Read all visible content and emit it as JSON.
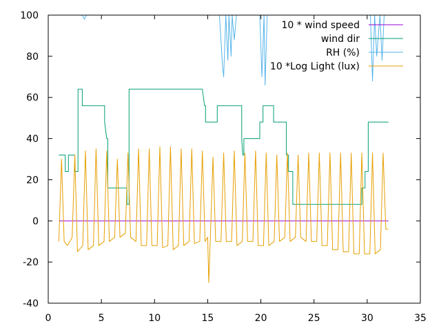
{
  "chart_data": {
    "type": "line",
    "xlim": [
      0,
      35
    ],
    "ylim": [
      -40,
      100
    ],
    "xticks": [
      0,
      5,
      10,
      15,
      20,
      25,
      30,
      35
    ],
    "yticks": [
      -40,
      -20,
      0,
      20,
      40,
      60,
      80,
      100
    ],
    "xtick_labels": [
      "0",
      "5",
      "10",
      "15",
      "20",
      "25",
      "30",
      "35"
    ],
    "ytick_labels": [
      "-40",
      "-20",
      "0",
      "20",
      "40",
      "60",
      "80",
      "100"
    ],
    "grid": false,
    "legend_position": "top-right",
    "series": [
      {
        "name": "10 * wind speed",
        "color": "#9400d3",
        "x": [
          1.0,
          32.0
        ],
        "y": [
          0,
          0
        ]
      },
      {
        "name": "wind dir",
        "color": "#009e73",
        "x": [
          1.0,
          1.6,
          1.6,
          1.9,
          1.9,
          2.5,
          2.5,
          2.8,
          2.8,
          3.2,
          3.2,
          5.3,
          5.3,
          5.5,
          5.6,
          5.6,
          7.4,
          7.4,
          7.6,
          7.6,
          14.5,
          14.7,
          14.8,
          14.8,
          15.9,
          15.9,
          18.2,
          18.2,
          18.3,
          18.4,
          18.4,
          19.9,
          19.9,
          20.2,
          20.2,
          21.2,
          21.2,
          22.4,
          22.4,
          22.6,
          22.6,
          23.0,
          23.0,
          29.5,
          29.5,
          29.8,
          29.8,
          30.1,
          30.1,
          32.0
        ],
        "y": [
          32,
          32,
          24,
          24,
          32,
          32,
          24,
          24,
          64,
          64,
          56,
          56,
          48,
          40,
          40,
          16,
          16,
          8,
          8,
          64,
          64,
          56,
          56,
          48,
          48,
          56,
          56,
          40,
          32,
          32,
          40,
          40,
          48,
          48,
          56,
          56,
          48,
          48,
          32,
          32,
          24,
          24,
          8,
          8,
          16,
          16,
          24,
          24,
          48,
          48
        ]
      },
      {
        "name": "RH (%)",
        "color": "#56b4e9",
        "x": [
          3.2,
          3.4,
          3.6,
          16.1,
          16.4,
          16.5,
          16.7,
          16.9,
          17.0,
          17.2,
          17.3,
          17.5,
          17.7,
          19.9,
          20.1,
          20.3,
          20.4,
          20.6,
          20.8,
          30.3,
          30.5,
          30.7,
          30.9,
          31.2,
          31.4,
          31.6,
          31.8,
          32.0
        ],
        "y": [
          100,
          98,
          100,
          100,
          75,
          70,
          100,
          78,
          100,
          80,
          100,
          88,
          100,
          100,
          70,
          100,
          66,
          100,
          100,
          100,
          68,
          100,
          80,
          100,
          78,
          100,
          100,
          100
        ]
      },
      {
        "name": "10 *Log Light (lux)",
        "color": "#e69f00",
        "x": [
          1.0,
          1.25,
          1.5,
          1.8,
          2.25,
          2.5,
          2.75,
          3.25,
          3.5,
          3.75,
          4.25,
          4.5,
          4.75,
          5.25,
          5.5,
          5.75,
          6.25,
          6.5,
          6.75,
          7.25,
          7.5,
          7.75,
          8.25,
          8.5,
          8.75,
          9.25,
          9.5,
          9.75,
          10.25,
          10.5,
          10.75,
          11.25,
          11.5,
          11.75,
          12.25,
          12.5,
          12.75,
          13.25,
          13.5,
          13.75,
          14.25,
          14.5,
          14.75,
          15.0,
          15.1,
          15.25,
          15.5,
          15.75,
          16.25,
          16.5,
          16.75,
          17.25,
          17.5,
          17.75,
          18.25,
          18.5,
          18.75,
          19.25,
          19.5,
          19.75,
          20.25,
          20.5,
          20.75,
          21.25,
          21.5,
          21.75,
          22.25,
          22.5,
          22.75,
          23.25,
          23.5,
          23.75,
          24.25,
          24.5,
          24.75,
          25.25,
          25.5,
          25.75,
          26.25,
          26.5,
          26.75,
          27.25,
          27.5,
          27.75,
          28.25,
          28.5,
          28.75,
          29.25,
          29.5,
          29.75,
          30.25,
          30.5,
          30.75,
          31.25,
          31.5,
          31.75,
          32.0
        ],
        "y": [
          -10,
          30,
          -10,
          -12,
          -8,
          32,
          -15,
          -12,
          34,
          -14,
          -12,
          35,
          -12,
          -10,
          34,
          -10,
          -8,
          30,
          -8,
          -6,
          33,
          -8,
          -10,
          35,
          -12,
          -12,
          35,
          -12,
          -12,
          36,
          -13,
          -12,
          36,
          -14,
          -12,
          35,
          -12,
          -10,
          35,
          -11,
          -10,
          34,
          -10,
          -8,
          -30,
          -8,
          31,
          -10,
          -10,
          33,
          -10,
          -10,
          34,
          -12,
          -10,
          33,
          -10,
          -10,
          34,
          -12,
          -12,
          33,
          -12,
          -10,
          32,
          -10,
          -8,
          33,
          -10,
          -8,
          32,
          -8,
          -10,
          33,
          -10,
          -10,
          33,
          -12,
          -12,
          33,
          -14,
          -14,
          33,
          -15,
          -15,
          33,
          -16,
          -16,
          33,
          -16,
          -16,
          33,
          -16,
          -14,
          33,
          -4,
          -4
        ]
      }
    ]
  }
}
